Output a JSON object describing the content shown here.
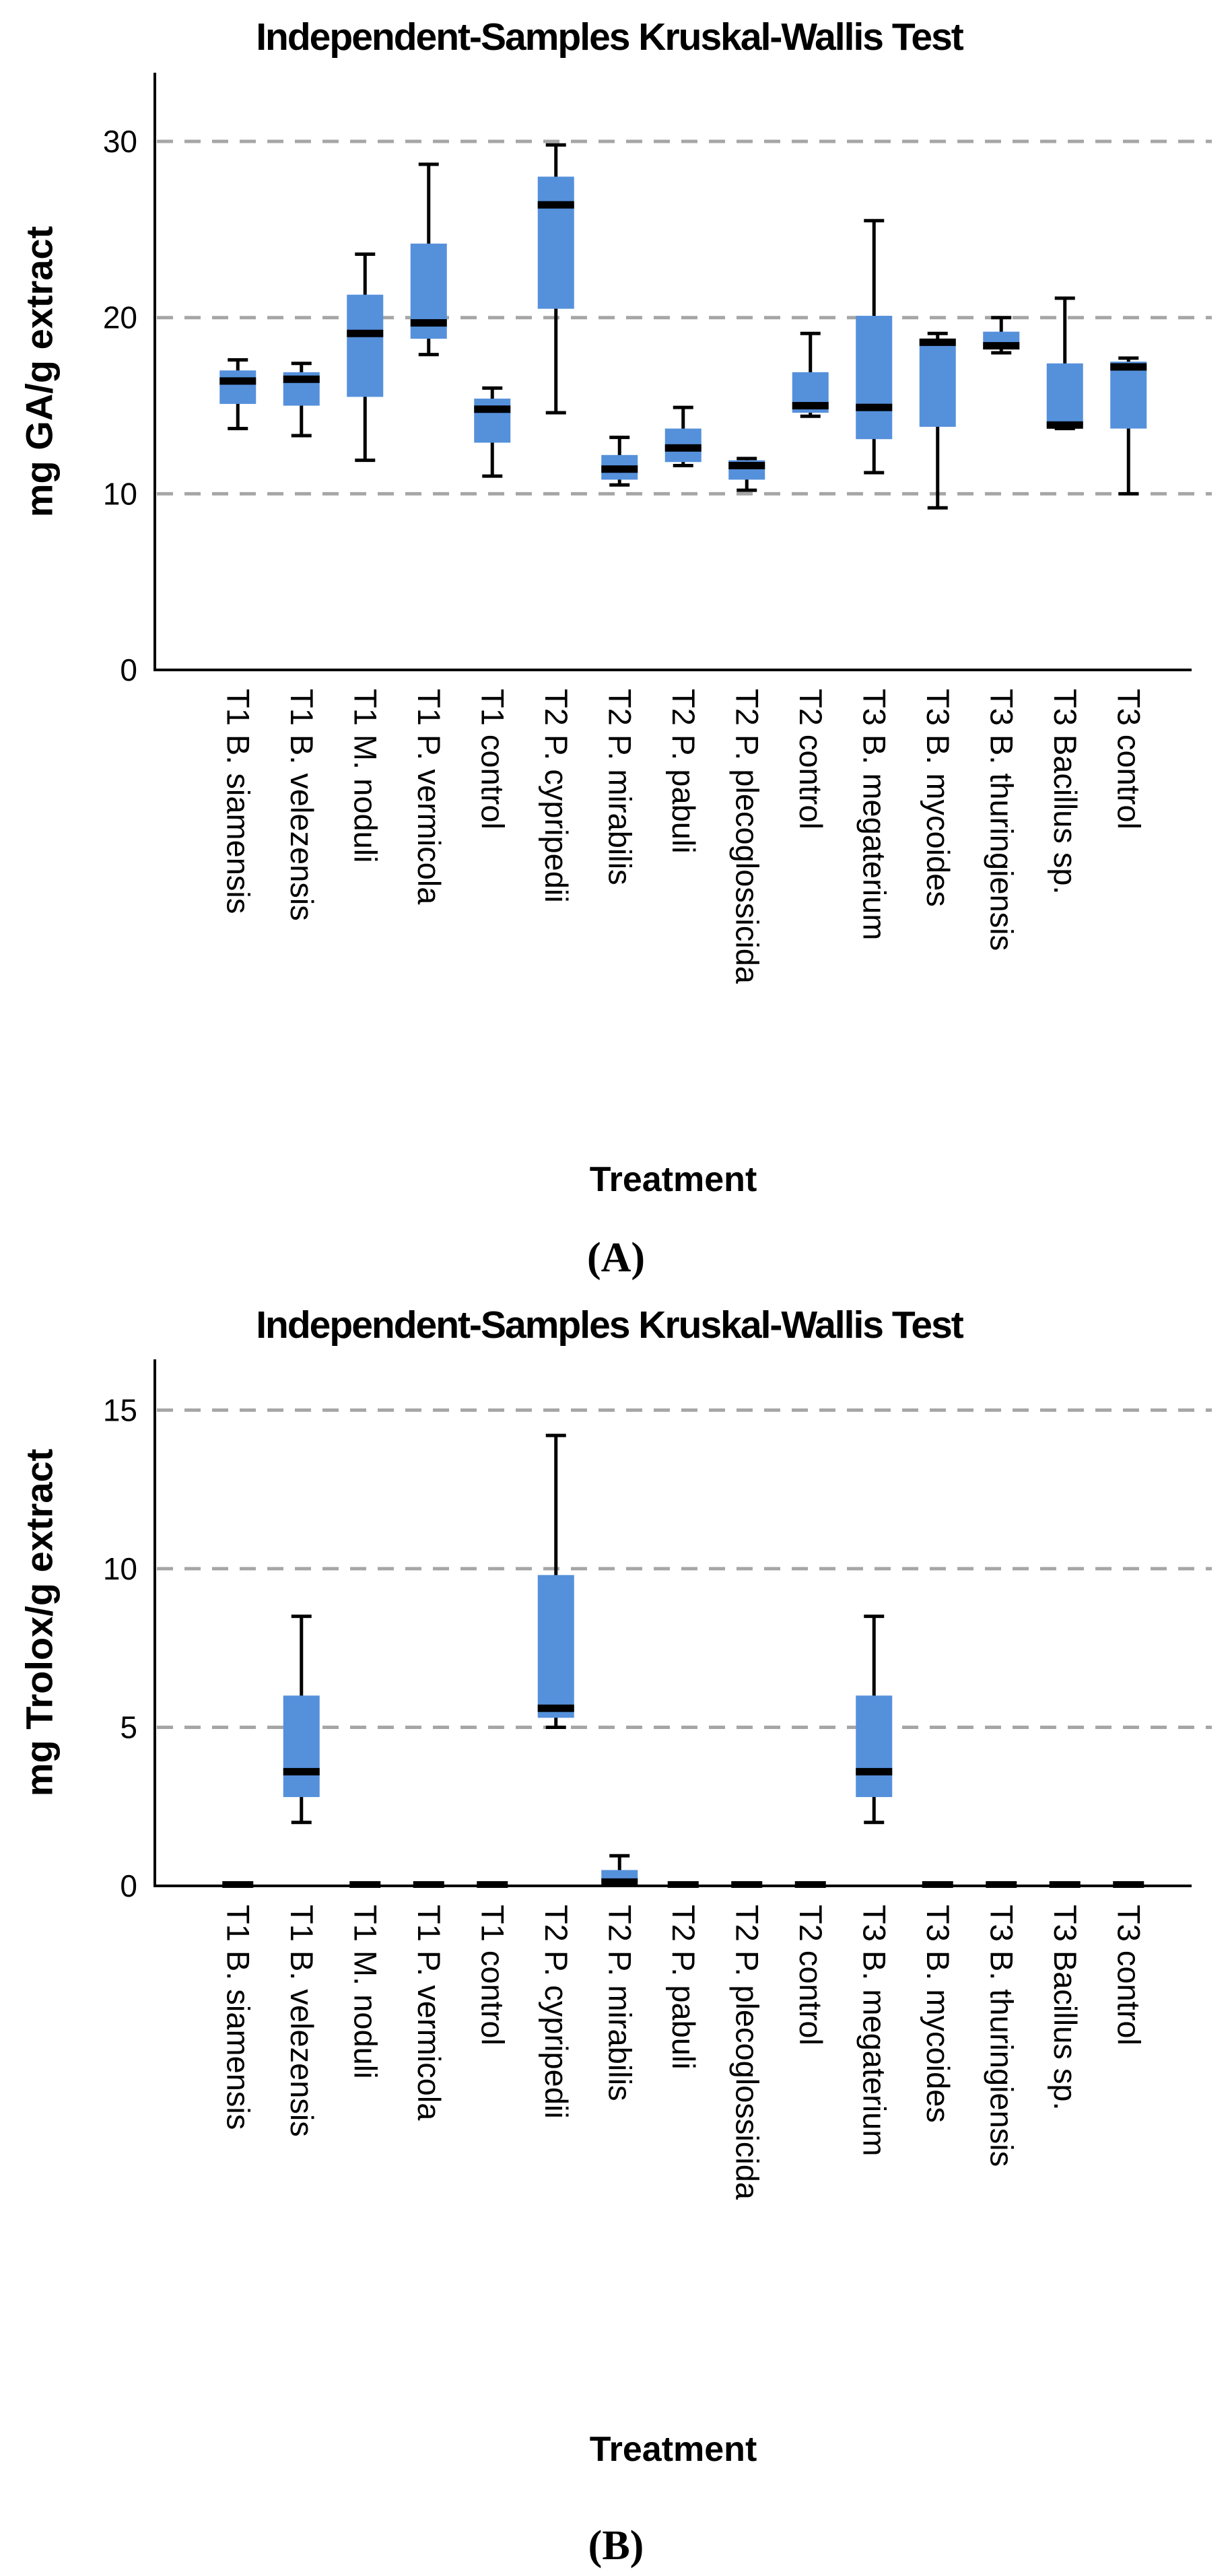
{
  "figure": {
    "panels": [
      {
        "title": "Independent-Samples Kruskal-Wallis Test",
        "y_axis_label": "mg GA/g extract",
        "x_axis_label": "Treatment",
        "caption": "(A)"
      },
      {
        "title": "Independent-Samples Kruskal-Wallis Test",
        "y_axis_label": "mg Trolox/g extract",
        "x_axis_label": "Treatment",
        "caption": "(B)"
      }
    ]
  },
  "colors": {
    "box_fill": "#5590DB",
    "median": "#000000",
    "whisker": "#000000",
    "axis": "#000000",
    "gridline": "#A6A6A6",
    "background": "#ffffff"
  },
  "chart_data": [
    {
      "type": "box",
      "title": "Independent-Samples Kruskal-Wallis Test",
      "xlabel": "Treatment",
      "ylabel": "mg GA/g extract",
      "ylim": [
        0,
        33.9
      ],
      "yticks": [
        0,
        10,
        20,
        30
      ],
      "grid": "horizontal dashed at 10, 20, 30",
      "legend": "none",
      "categories": [
        "T1 B. siamensis",
        "T1 B. velezensis",
        "T1 M. noduli",
        "T1 P. vermicola",
        "T1 control",
        "T2 P. cypripedii",
        "T2 P. mirabilis",
        "T2 P. pabuli",
        "T2 P. plecoglossicida",
        "T2 control",
        "T3 B. megaterium",
        "T3 B. mycoides",
        "T3 B. thuringiensis",
        "T3 Bacillus sp.",
        "T3 control"
      ],
      "series": [
        {
          "name": "T1 B. siamensis",
          "min": 13.7,
          "q1": 15.1,
          "median": 16.4,
          "q3": 17.0,
          "max": 17.6
        },
        {
          "name": "T1 B. velezensis",
          "min": 13.3,
          "q1": 15.0,
          "median": 16.5,
          "q3": 16.9,
          "max": 17.4
        },
        {
          "name": "T1 M. noduli",
          "min": 11.9,
          "q1": 15.5,
          "median": 19.1,
          "q3": 21.3,
          "max": 23.6
        },
        {
          "name": "T1 P. vermicola",
          "min": 17.9,
          "q1": 18.8,
          "median": 19.7,
          "q3": 24.2,
          "max": 28.7
        },
        {
          "name": "T1 control",
          "min": 11.0,
          "q1": 12.9,
          "median": 14.8,
          "q3": 15.4,
          "max": 16.0
        },
        {
          "name": "T2 P. cypripedii",
          "min": 14.6,
          "q1": 20.5,
          "median": 26.4,
          "q3": 28.0,
          "max": 29.8
        },
        {
          "name": "T2 P. mirabilis",
          "min": 10.5,
          "q1": 10.8,
          "median": 11.4,
          "q3": 12.2,
          "max": 13.2
        },
        {
          "name": "T2 P. pabuli",
          "min": 11.6,
          "q1": 11.8,
          "median": 12.6,
          "q3": 13.7,
          "max": 14.9
        },
        {
          "name": "T2 P. plecoglossicida",
          "min": 10.2,
          "q1": 10.8,
          "median": 11.6,
          "q3": 11.9,
          "max": 12.0
        },
        {
          "name": "T2 control",
          "min": 14.4,
          "q1": 14.6,
          "median": 15.0,
          "q3": 16.9,
          "max": 19.1
        },
        {
          "name": "T3 B. megaterium",
          "min": 11.2,
          "q1": 13.1,
          "median": 14.9,
          "q3": 20.1,
          "max": 25.5
        },
        {
          "name": "T3 B. mycoides",
          "min": 9.2,
          "q1": 13.8,
          "median": 18.6,
          "q3": 18.8,
          "max": 19.1
        },
        {
          "name": "T3 B. thuringiensis",
          "min": 18.0,
          "q1": 18.2,
          "median": 18.4,
          "q3": 19.2,
          "max": 20.0
        },
        {
          "name": "T3 Bacillus sp.",
          "min": 13.7,
          "q1": 13.8,
          "median": 13.9,
          "q3": 17.4,
          "max": 21.1
        },
        {
          "name": "T3 control",
          "min": 10.0,
          "q1": 13.7,
          "median": 17.2,
          "q3": 17.5,
          "max": 17.7
        }
      ]
    },
    {
      "type": "box",
      "title": "Independent-Samples Kruskal-Wallis Test",
      "xlabel": "Treatment",
      "ylabel": "mg Trolox/g extract",
      "ylim": [
        0,
        16.6
      ],
      "yticks": [
        0,
        5,
        10,
        15
      ],
      "grid": "horizontal dashed at 5, 10, 15",
      "legend": "none",
      "categories": [
        "T1 B. siamensis",
        "T1 B. velezensis",
        "T1 M. noduli",
        "T1 P. vermicola",
        "T1 control",
        "T2 P. cypripedii",
        "T2 P. mirabilis",
        "T2 P. pabuli",
        "T2 P. plecoglossicida",
        "T2 control",
        "T3 B. megaterium",
        "T3 B. mycoides",
        "T3 B. thuringiensis",
        "T3 Bacillus sp.",
        "T3 control"
      ],
      "series": [
        {
          "name": "T1 B. siamensis",
          "min": 0,
          "q1": 0,
          "median": 0,
          "q3": 0,
          "max": 0
        },
        {
          "name": "T1 B. velezensis",
          "min": 2.0,
          "q1": 2.8,
          "median": 3.6,
          "q3": 6.0,
          "max": 8.5
        },
        {
          "name": "T1 M. noduli",
          "min": 0,
          "q1": 0,
          "median": 0,
          "q3": 0,
          "max": 0
        },
        {
          "name": "T1 P. vermicola",
          "min": 0,
          "q1": 0,
          "median": 0,
          "q3": 0,
          "max": 0
        },
        {
          "name": "T1 control",
          "min": 0,
          "q1": 0,
          "median": 0,
          "q3": 0,
          "max": 0
        },
        {
          "name": "T2 P. cypripedii",
          "min": 5.0,
          "q1": 5.3,
          "median": 5.6,
          "q3": 9.8,
          "max": 14.2
        },
        {
          "name": "T2 P. mirabilis",
          "min": 0.1,
          "q1": 0.1,
          "median": 0.12,
          "q3": 0.5,
          "max": 0.95
        },
        {
          "name": "T2 P. pabuli",
          "min": 0,
          "q1": 0,
          "median": 0,
          "q3": 0,
          "max": 0
        },
        {
          "name": "T2 P. plecoglossicida",
          "min": 0,
          "q1": 0,
          "median": 0,
          "q3": 0,
          "max": 0
        },
        {
          "name": "T2 control",
          "min": 0,
          "q1": 0,
          "median": 0,
          "q3": 0,
          "max": 0
        },
        {
          "name": "T3 B. megaterium",
          "min": 2.0,
          "q1": 2.8,
          "median": 3.6,
          "q3": 6.0,
          "max": 8.5
        },
        {
          "name": "T3 B. mycoides",
          "min": 0,
          "q1": 0,
          "median": 0,
          "q3": 0,
          "max": 0
        },
        {
          "name": "T3 B. thuringiensis",
          "min": 0,
          "q1": 0,
          "median": 0,
          "q3": 0,
          "max": 0
        },
        {
          "name": "T3 Bacillus sp.",
          "min": 0,
          "q1": 0,
          "median": 0,
          "q3": 0,
          "max": 0
        },
        {
          "name": "T3 control",
          "min": 0,
          "q1": 0,
          "median": 0,
          "q3": 0,
          "max": 0
        }
      ]
    }
  ]
}
